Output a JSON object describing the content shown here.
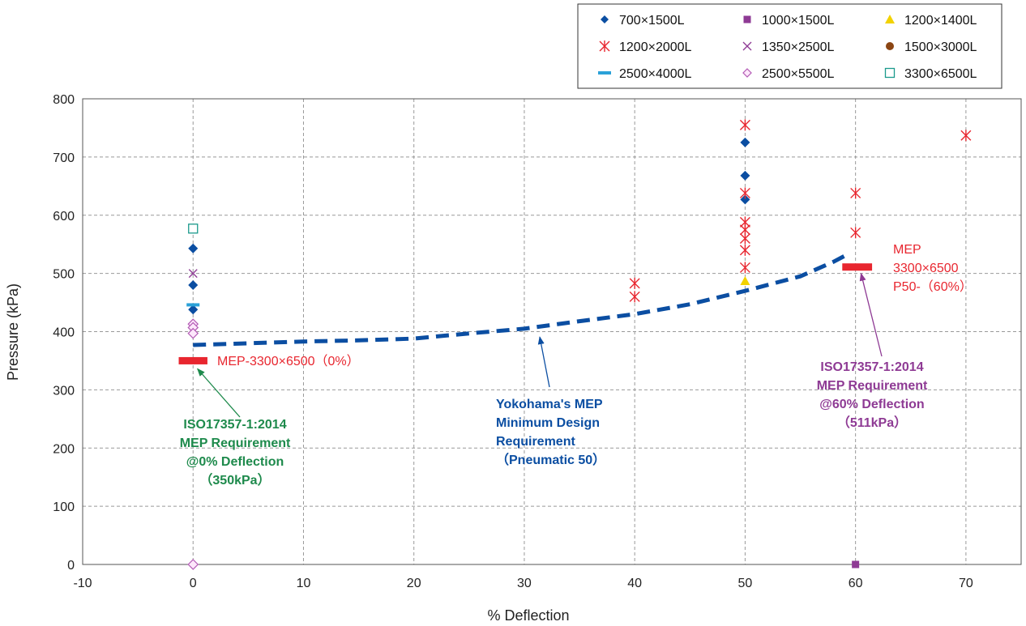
{
  "chart_data": {
    "type": "scatter",
    "xlabel": "% Deflection",
    "ylabel": "Pressure (kPa)",
    "xlim": [
      -10,
      75
    ],
    "ylim": [
      0,
      800
    ],
    "x_ticks": [
      -10,
      0,
      10,
      20,
      30,
      40,
      50,
      60,
      70
    ],
    "y_ticks": [
      0,
      100,
      200,
      300,
      400,
      500,
      600,
      700,
      800
    ],
    "grid": true,
    "legend_placement": "top-right",
    "series": [
      {
        "name": "700×1500L",
        "marker": "diamond-filled",
        "color": "#0b4ea2",
        "points": [
          [
            0,
            543
          ],
          [
            0,
            480
          ],
          [
            0,
            438
          ],
          [
            50,
            725
          ],
          [
            50,
            668
          ],
          [
            50,
            627
          ]
        ]
      },
      {
        "name": "1000×1500L",
        "marker": "square-filled",
        "color": "#8e3a94",
        "points": [
          [
            60,
            0
          ]
        ]
      },
      {
        "name": "1200×1400L",
        "marker": "triangle-filled",
        "color": "#f2d200",
        "points": [
          [
            50,
            487
          ]
        ]
      },
      {
        "name": "1200×2000L",
        "marker": "asterisk",
        "color": "#e8262f",
        "points": [
          [
            40,
            483
          ],
          [
            40,
            460
          ],
          [
            50,
            755
          ],
          [
            50,
            638
          ],
          [
            50,
            588
          ],
          [
            50,
            575
          ],
          [
            50,
            560
          ],
          [
            50,
            540
          ],
          [
            50,
            510
          ],
          [
            60,
            638
          ],
          [
            60,
            570
          ],
          [
            70,
            737
          ]
        ]
      },
      {
        "name": "1350×2500L",
        "marker": "x",
        "color": "#8e3a94",
        "points": [
          [
            0,
            500
          ]
        ]
      },
      {
        "name": "1500×3000L",
        "marker": "circle-filled",
        "color": "#8b4513",
        "points": []
      },
      {
        "name": "2500×4000L",
        "marker": "dash",
        "color": "#2aa1d8",
        "points": [
          [
            0,
            446
          ]
        ]
      },
      {
        "name": "2500×5500L",
        "marker": "diamond-open",
        "color": "#b35bb5",
        "points": [
          [
            0,
            413
          ],
          [
            0,
            407
          ],
          [
            0,
            397
          ],
          [
            0,
            0
          ]
        ]
      },
      {
        "name": "3300×6500L",
        "marker": "square-open",
        "color": "#1b9a8c",
        "points": [
          [
            0,
            577
          ]
        ]
      }
    ],
    "mep_curve": {
      "color": "#0b4ea2",
      "points": [
        [
          0,
          377
        ],
        [
          5,
          380
        ],
        [
          10,
          383
        ],
        [
          15,
          385
        ],
        [
          20,
          388
        ],
        [
          25,
          397
        ],
        [
          30,
          405
        ],
        [
          35,
          418
        ],
        [
          40,
          430
        ],
        [
          45,
          447
        ],
        [
          50,
          470
        ],
        [
          55,
          495
        ],
        [
          58,
          520
        ],
        [
          59,
          530
        ]
      ]
    },
    "mep_bars": [
      {
        "x_from": -1.3,
        "x_to": 1.3,
        "y": 350,
        "color": "#e8262f"
      },
      {
        "x_from": 58.8,
        "x_to": 61.5,
        "y": 511,
        "color": "#e8262f"
      }
    ],
    "annotations": {
      "mep_0": "MEP-3300×6500（0%）",
      "mep_60_line1": "MEP",
      "mep_60_line2": "3300×6500",
      "mep_60_line3": "P50-（60%）",
      "iso_0_line1": "ISO17357-1:2014",
      "iso_0_line2": "MEP Requirement",
      "iso_0_line3": "@0% Deflection",
      "iso_0_line4": "（350kPa）",
      "iso_60_line1": "ISO17357-1:2014",
      "iso_60_line2": "MEP Requirement",
      "iso_60_line3": "@60% Deflection",
      "iso_60_line4": "（511kPa）",
      "yoko_line1": "Yokohama's MEP",
      "yoko_line2": "Minimum Design",
      "yoko_line3": "Requirement",
      "yoko_line4": "（Pneumatic 50）"
    },
    "annotation_colors": {
      "red": "#e8262f",
      "green": "#1e8a4c",
      "purple": "#8e3a94",
      "blue": "#0b4ea2"
    }
  }
}
